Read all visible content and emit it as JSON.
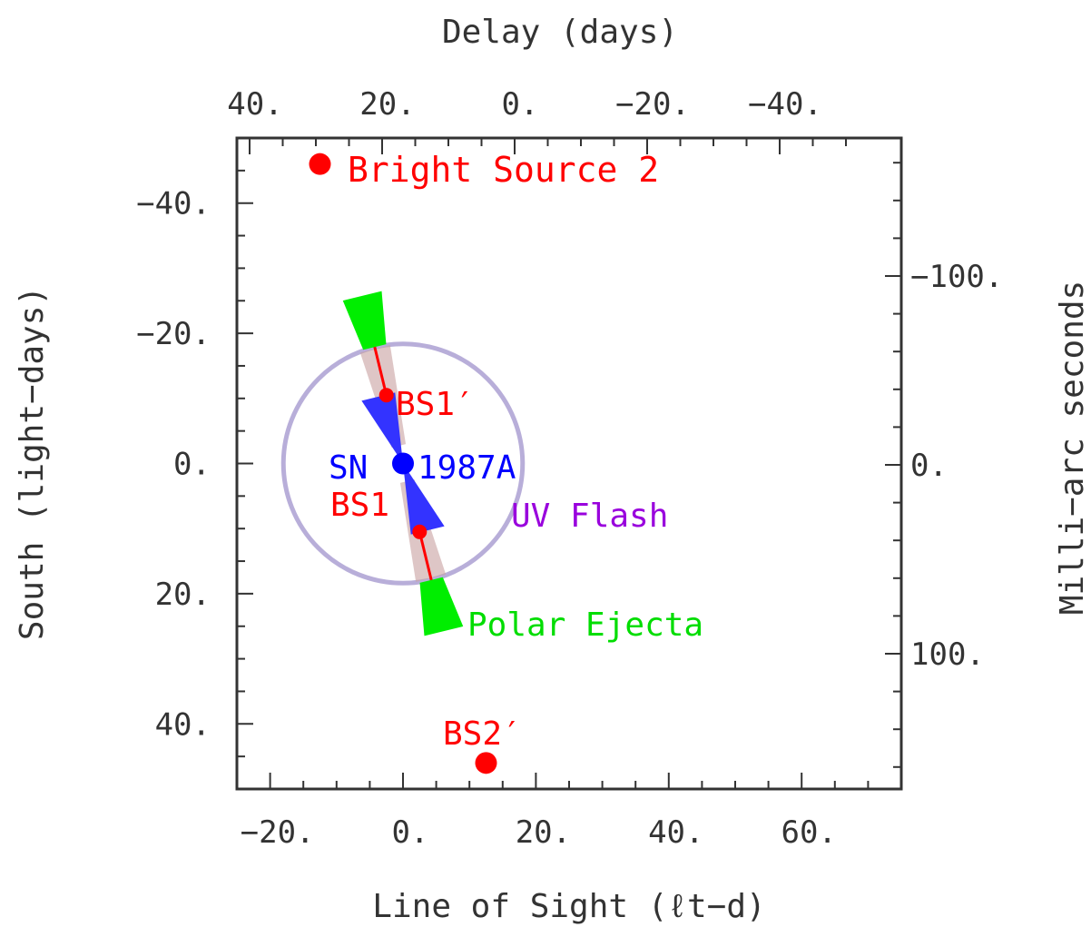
{
  "chart_data": {
    "type": "scatter",
    "title": "",
    "xlabel": "Line of Sight (ℓt−d)",
    "ylabel": "South (light−days)",
    "x2label": "Delay (days)",
    "y2label": "Milli−arc seconds",
    "xlim": [
      -25,
      75
    ],
    "ylim": [
      50,
      -50
    ],
    "x_ticks": [
      {
        "value": -20,
        "label": "−20."
      },
      {
        "value": 0,
        "label": "0."
      },
      {
        "value": 20,
        "label": "20."
      },
      {
        "value": 40,
        "label": "40."
      },
      {
        "value": 60,
        "label": "60."
      }
    ],
    "y_ticks": [
      {
        "value": -40,
        "label": "−40."
      },
      {
        "value": -20,
        "label": "−20."
      },
      {
        "value": 0,
        "label": "0."
      },
      {
        "value": 20,
        "label": "20."
      },
      {
        "value": 40,
        "label": "40."
      }
    ],
    "x2_ticks": [
      {
        "value": 40,
        "label": "40."
      },
      {
        "value": 20,
        "label": "20."
      },
      {
        "value": 0,
        "label": "0."
      },
      {
        "value": -20,
        "label": "−20."
      },
      {
        "value": -40,
        "label": "−40."
      }
    ],
    "y2_ticks": [
      {
        "value": -100,
        "label": "−100."
      },
      {
        "value": 0,
        "label": "0."
      },
      {
        "value": 100,
        "label": "100."
      }
    ],
    "points": [
      {
        "name": "Bright Source 2",
        "x": -12.5,
        "y": -46,
        "color": "#ff0000",
        "size": "large"
      },
      {
        "name": "BS2′",
        "x": 12.5,
        "y": 46,
        "color": "#ff0000",
        "size": "large"
      },
      {
        "name": "BS1′",
        "x": -2.5,
        "y": -10.5,
        "color": "#ff0000",
        "size": "small"
      },
      {
        "name": "BS1",
        "x": 2.5,
        "y": 10.5,
        "color": "#ff0000",
        "size": "small"
      },
      {
        "name": "SN 1987A",
        "x": 0,
        "y": 0,
        "color": "#0000ff",
        "size": "medium"
      }
    ],
    "labels": {
      "bright_source_2": "Bright Source 2",
      "bs2_prime": "BS2′",
      "bs1_prime": "BS1′",
      "bs1": "BS1",
      "sn_left": "SN",
      "sn_right": "1987A",
      "uv_flash": "UV Flash",
      "polar_ejecta": "Polar Ejecta"
    },
    "uv_flash_ring": {
      "center_x": 0,
      "center_y": 0,
      "radius": 18
    },
    "colors": {
      "bright_source": "#ff0000",
      "sn": "#0000ff",
      "uv_flash": "#9900dd",
      "uv_ring": "#8878c0",
      "polar_ejecta": "#00ee00",
      "jet_cone": "#3333ff",
      "jet_shade": "#c8a0a0",
      "axis": "#333333"
    },
    "grid": false,
    "legend": "none"
  }
}
